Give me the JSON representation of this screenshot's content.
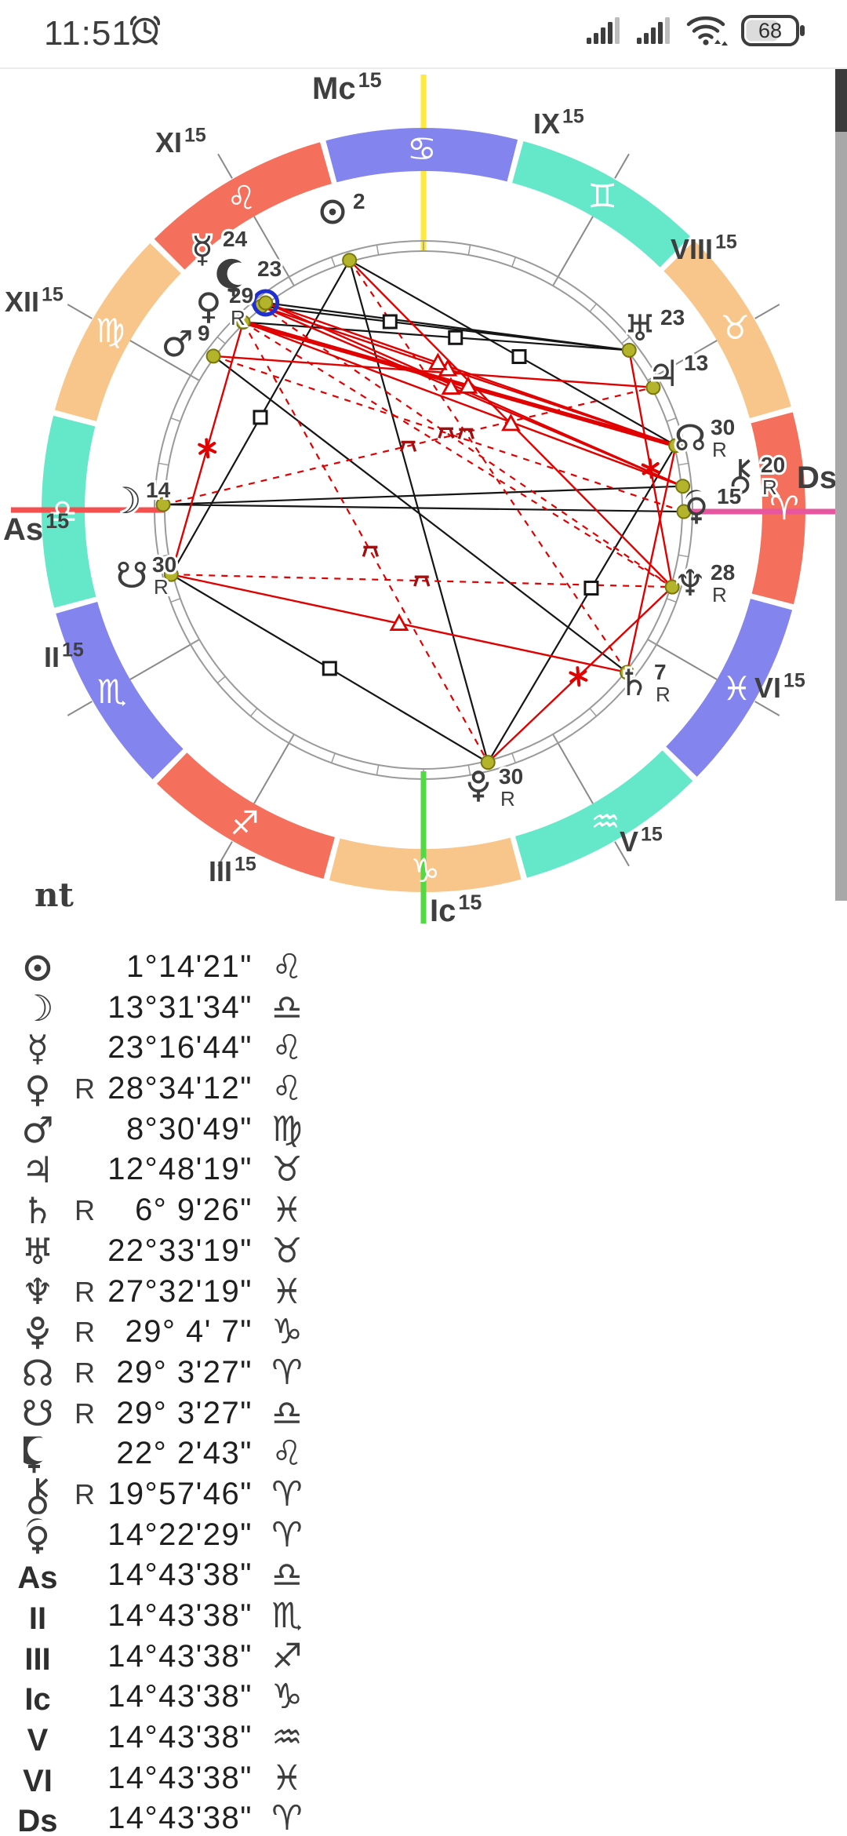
{
  "status_bar": {
    "time": "11:51",
    "battery_level": "68",
    "icons": [
      "alarm-icon",
      "signal-bars-sim1",
      "signal-bars-sim2",
      "wifi-calling-icon",
      "battery-icon"
    ]
  },
  "note_text": "nt",
  "chart_data": {
    "type": "natal-chart-wheel",
    "ascendant_lon": 194.7272,
    "selected_planet": "lilith",
    "colors": {
      "fire": "#f4705c",
      "earth": "#f8c68b",
      "air": "#65e7ca",
      "water": "#8484ee",
      "axis_red": "#f4504f",
      "axis_pink": "#e7579f",
      "axis_yellow": "#ffe93e",
      "axis_green": "#52d943",
      "aspect_black": "#151515",
      "aspect_red": "#e00000",
      "quincunx_marker": "#a01010",
      "dot_fill": "#b3b32c",
      "dot_stroke": "#77770e",
      "ring": "#9a9a9a",
      "cusp": "#8a8a8a",
      "text": "#3d3d3d",
      "selection_ring": "#1f2fd0"
    },
    "signs": [
      {
        "name": "aries",
        "glyph": "♈",
        "element": "fire"
      },
      {
        "name": "taurus",
        "glyph": "♉",
        "element": "earth"
      },
      {
        "name": "gemini",
        "glyph": "♊",
        "element": "air"
      },
      {
        "name": "cancer",
        "glyph": "♋",
        "element": "water"
      },
      {
        "name": "leo",
        "glyph": "♌",
        "element": "fire"
      },
      {
        "name": "virgo",
        "glyph": "♍",
        "element": "earth"
      },
      {
        "name": "libra",
        "glyph": "♎",
        "element": "air"
      },
      {
        "name": "scorpio",
        "glyph": "♏",
        "element": "water"
      },
      {
        "name": "sagittarius",
        "glyph": "♐",
        "element": "fire"
      },
      {
        "name": "capricorn",
        "glyph": "♑",
        "element": "earth"
      },
      {
        "name": "aquarius",
        "glyph": "♒",
        "element": "air"
      },
      {
        "name": "pisces",
        "glyph": "♓",
        "element": "water"
      }
    ],
    "houses": [
      {
        "label": "II",
        "sup": "15",
        "cusp_angle": 210
      },
      {
        "label": "III",
        "sup": "15",
        "cusp_angle": 240
      },
      {
        "label": "V",
        "sup": "15",
        "cusp_angle": 300
      },
      {
        "label": "VI",
        "sup": "15",
        "cusp_angle": 330
      },
      {
        "label": "VIII",
        "sup": "15",
        "cusp_angle": 30
      },
      {
        "label": "IX",
        "sup": "15",
        "cusp_angle": 60
      },
      {
        "label": "XI",
        "sup": "15",
        "cusp_angle": 120
      },
      {
        "label": "XII",
        "sup": "15",
        "cusp_angle": 150
      }
    ],
    "axes": [
      {
        "id": "mc",
        "label": "Mc",
        "sup": "15"
      },
      {
        "id": "ic",
        "label": "Ic",
        "sup": "15"
      },
      {
        "id": "as",
        "label": "As",
        "sup": "15"
      },
      {
        "id": "ds",
        "label": "Ds",
        "sup": "15"
      }
    ],
    "planets": [
      {
        "id": "sun",
        "glyph": "svg:sun",
        "lon": 121.2392,
        "wheel_deg": "2",
        "retro": false
      },
      {
        "id": "moon",
        "glyph": "☽",
        "lon": 193.5261,
        "wheel_deg": "14",
        "retro": false
      },
      {
        "id": "mercury",
        "glyph": "☿",
        "lon": 143.2789,
        "wheel_deg": "24",
        "retro": false
      },
      {
        "id": "venus",
        "glyph": "♀",
        "lon": 148.57,
        "wheel_deg": "29",
        "retro": true
      },
      {
        "id": "mars",
        "glyph": "♂",
        "lon": 158.5136,
        "wheel_deg": "9",
        "retro": false
      },
      {
        "id": "jupiter",
        "glyph": "♃",
        "lon": 42.8053,
        "wheel_deg": "13",
        "retro": false
      },
      {
        "id": "saturn",
        "glyph": "♄",
        "lon": 336.1572,
        "wheel_deg": "7",
        "retro": true
      },
      {
        "id": "uranus",
        "glyph": "♅",
        "lon": 52.5553,
        "wheel_deg": "23",
        "retro": false
      },
      {
        "id": "neptune",
        "glyph": "♆",
        "lon": 357.5386,
        "wheel_deg": "28",
        "retro": true
      },
      {
        "id": "pluto",
        "glyph": "svg:pluto",
        "lon": 299.0686,
        "wheel_deg": "30",
        "retro": true
      },
      {
        "id": "nnode",
        "glyph": "☊",
        "lon": 29.0575,
        "wheel_deg": "30",
        "retro": true
      },
      {
        "id": "snode",
        "glyph": "☋",
        "lon": 209.0575,
        "wheel_deg": "30",
        "retro": true
      },
      {
        "id": "lilith",
        "glyph": "svg:lilith",
        "lon": 142.0453,
        "wheel_deg": "23",
        "retro": false
      },
      {
        "id": "chiron",
        "glyph": "svg:chiron",
        "lon": 19.9628,
        "wheel_deg": "20",
        "retro": true
      },
      {
        "id": "selena",
        "glyph": "svg:selena",
        "lon": 14.3747,
        "wheel_deg": "15",
        "retro": false
      }
    ],
    "aspects": [
      {
        "a": "sun",
        "b": "pluto",
        "type": "opposition"
      },
      {
        "a": "moon",
        "b": "selena",
        "type": "opposition"
      },
      {
        "a": "moon",
        "b": "chiron",
        "type": "opposition"
      },
      {
        "a": "mars",
        "b": "saturn",
        "type": "opposition"
      },
      {
        "a": "mercury",
        "b": "uranus",
        "type": "square",
        "t": 0.35
      },
      {
        "a": "venus",
        "b": "uranus",
        "type": "square",
        "t": 0.55
      },
      {
        "a": "lilith",
        "b": "uranus",
        "type": "square"
      },
      {
        "a": "sun",
        "b": "nnode",
        "type": "square",
        "t": 0.52
      },
      {
        "a": "sun",
        "b": "snode",
        "type": "square",
        "t": 0.5
      },
      {
        "a": "nnode",
        "b": "pluto",
        "type": "square",
        "t": 0.45
      },
      {
        "a": "snode",
        "b": "pluto",
        "type": "square",
        "t": 0.5
      },
      {
        "a": "venus",
        "b": "nnode",
        "type": "trine",
        "heavy": true,
        "t": 0.52
      },
      {
        "a": "mercury",
        "b": "nnode",
        "type": "trine",
        "t": 0.45
      },
      {
        "a": "lilith",
        "b": "nnode",
        "type": "trine",
        "t": 0.42
      },
      {
        "a": "mercury",
        "b": "chiron",
        "type": "trine",
        "t": 0.45
      },
      {
        "a": "venus",
        "b": "chiron",
        "type": "trine"
      },
      {
        "a": "lilith",
        "b": "chiron",
        "type": "trine"
      },
      {
        "a": "sun",
        "b": "neptune",
        "type": "trine",
        "t": 0.5
      },
      {
        "a": "mars",
        "b": "jupiter",
        "type": "trine"
      },
      {
        "a": "snode",
        "b": "saturn",
        "type": "trine",
        "t": 0.5
      },
      {
        "a": "venus",
        "b": "snode",
        "type": "sextile",
        "t": 0.5
      },
      {
        "a": "uranus",
        "b": "neptune",
        "type": "sextile",
        "t": 0.5
      },
      {
        "a": "pluto",
        "b": "neptune",
        "type": "sextile",
        "t": 0.49
      },
      {
        "a": "nnode",
        "b": "saturn",
        "type": "sextile"
      },
      {
        "a": "moon",
        "b": "jupiter",
        "type": "quincunx",
        "t": 0.5
      },
      {
        "a": "sun",
        "b": "saturn",
        "type": "quincunx",
        "t": 0.42
      },
      {
        "a": "mercury",
        "b": "neptune",
        "type": "quincunx",
        "t": 0.45
      },
      {
        "a": "venus",
        "b": "neptune",
        "type": "quincunx"
      },
      {
        "a": "venus",
        "b": "pluto",
        "type": "quincunx",
        "t": 0.52
      },
      {
        "a": "snode",
        "b": "neptune",
        "type": "quincunx",
        "t": 0.5
      },
      {
        "a": "mars",
        "b": "selena",
        "type": "quincunx"
      }
    ]
  },
  "table": {
    "rows": [
      {
        "id": "sun",
        "label_glyph": "svg:sun",
        "retro": "",
        "degrees": "1°14'21\"",
        "sign": "♌"
      },
      {
        "id": "moon",
        "label_glyph": "☽",
        "retro": "",
        "degrees": "13°31'34\"",
        "sign": "♎"
      },
      {
        "id": "mercury",
        "label_glyph": "☿",
        "retro": "",
        "degrees": "23°16'44\"",
        "sign": "♌"
      },
      {
        "id": "venus",
        "label_glyph": "♀",
        "retro": "R",
        "degrees": "28°34'12\"",
        "sign": "♌"
      },
      {
        "id": "mars",
        "label_glyph": "♂",
        "retro": "",
        "degrees": "8°30'49\"",
        "sign": "♍"
      },
      {
        "id": "jupiter",
        "label_glyph": "♃",
        "retro": "",
        "degrees": "12°48'19\"",
        "sign": "♉"
      },
      {
        "id": "saturn",
        "label_glyph": "♄",
        "retro": "R",
        "degrees": "6° 9'26\"",
        "sign": "♓"
      },
      {
        "id": "uranus",
        "label_glyph": "♅",
        "retro": "",
        "degrees": "22°33'19\"",
        "sign": "♉"
      },
      {
        "id": "neptune",
        "label_glyph": "♆",
        "retro": "R",
        "degrees": "27°32'19\"",
        "sign": "♓"
      },
      {
        "id": "pluto",
        "label_glyph": "svg:pluto",
        "retro": "R",
        "degrees": "29° 4' 7\"",
        "sign": "♑"
      },
      {
        "id": "nnode",
        "label_glyph": "☊",
        "retro": "R",
        "degrees": "29° 3'27\"",
        "sign": "♈"
      },
      {
        "id": "snode",
        "label_glyph": "☋",
        "retro": "R",
        "degrees": "29° 3'27\"",
        "sign": "♎"
      },
      {
        "id": "lilith",
        "label_glyph": "svg:lilith",
        "retro": "",
        "degrees": "22° 2'43\"",
        "sign": "♌"
      },
      {
        "id": "chiron",
        "label_glyph": "svg:chiron",
        "retro": "R",
        "degrees": "19°57'46\"",
        "sign": "♈"
      },
      {
        "id": "selena",
        "label_glyph": "svg:selena",
        "retro": "",
        "degrees": "14°22'29\"",
        "sign": "♈"
      },
      {
        "id": "as",
        "label_glyph": "text:As",
        "retro": "",
        "degrees": "14°43'38\"",
        "sign": "♎"
      },
      {
        "id": "h2",
        "label_glyph": "text:II",
        "retro": "",
        "degrees": "14°43'38\"",
        "sign": "♏"
      },
      {
        "id": "h3",
        "label_glyph": "text:III",
        "retro": "",
        "degrees": "14°43'38\"",
        "sign": "♐"
      },
      {
        "id": "ic",
        "label_glyph": "text:Ic",
        "retro": "",
        "degrees": "14°43'38\"",
        "sign": "♑"
      },
      {
        "id": "h5",
        "label_glyph": "text:V",
        "retro": "",
        "degrees": "14°43'38\"",
        "sign": "♒"
      },
      {
        "id": "h6",
        "label_glyph": "text:VI",
        "retro": "",
        "degrees": "14°43'38\"",
        "sign": "♓"
      },
      {
        "id": "ds",
        "label_glyph": "text:Ds",
        "retro": "",
        "degrees": "14°43'38\"",
        "sign": "♈"
      }
    ]
  }
}
